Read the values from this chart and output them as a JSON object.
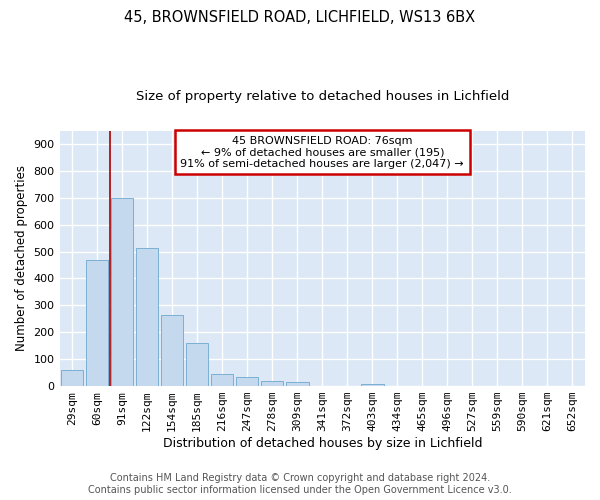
{
  "title1": "45, BROWNSFIELD ROAD, LICHFIELD, WS13 6BX",
  "title2": "Size of property relative to detached houses in Lichfield",
  "xlabel": "Distribution of detached houses by size in Lichfield",
  "ylabel": "Number of detached properties",
  "categories": [
    "29sqm",
    "60sqm",
    "91sqm",
    "122sqm",
    "154sqm",
    "185sqm",
    "216sqm",
    "247sqm",
    "278sqm",
    "309sqm",
    "341sqm",
    "372sqm",
    "403sqm",
    "434sqm",
    "465sqm",
    "496sqm",
    "527sqm",
    "559sqm",
    "590sqm",
    "621sqm",
    "652sqm"
  ],
  "values": [
    60,
    470,
    700,
    515,
    265,
    160,
    45,
    33,
    20,
    15,
    0,
    0,
    8,
    0,
    0,
    0,
    0,
    0,
    0,
    0,
    0
  ],
  "bar_color": "#c5d9ee",
  "bar_edge_color": "#7ab0d4",
  "vline_x": 1.5,
  "vline_color": "#aa0000",
  "annotation_text": "45 BROWNSFIELD ROAD: 76sqm\n← 9% of detached houses are smaller (195)\n91% of semi-detached houses are larger (2,047) →",
  "annotation_box_color": "#ffffff",
  "annotation_box_edge": "#cc0000",
  "ylim": [
    0,
    950
  ],
  "yticks": [
    0,
    100,
    200,
    300,
    400,
    500,
    600,
    700,
    800,
    900
  ],
  "footer": "Contains HM Land Registry data © Crown copyright and database right 2024.\nContains public sector information licensed under the Open Government Licence v3.0.",
  "fig_bg_color": "#ffffff",
  "plot_bg_color": "#dce8f5",
  "grid_color": "#ffffff",
  "title1_fontsize": 10.5,
  "title2_fontsize": 9.5,
  "xlabel_fontsize": 9,
  "ylabel_fontsize": 8.5,
  "footer_fontsize": 7,
  "tick_fontsize": 8
}
